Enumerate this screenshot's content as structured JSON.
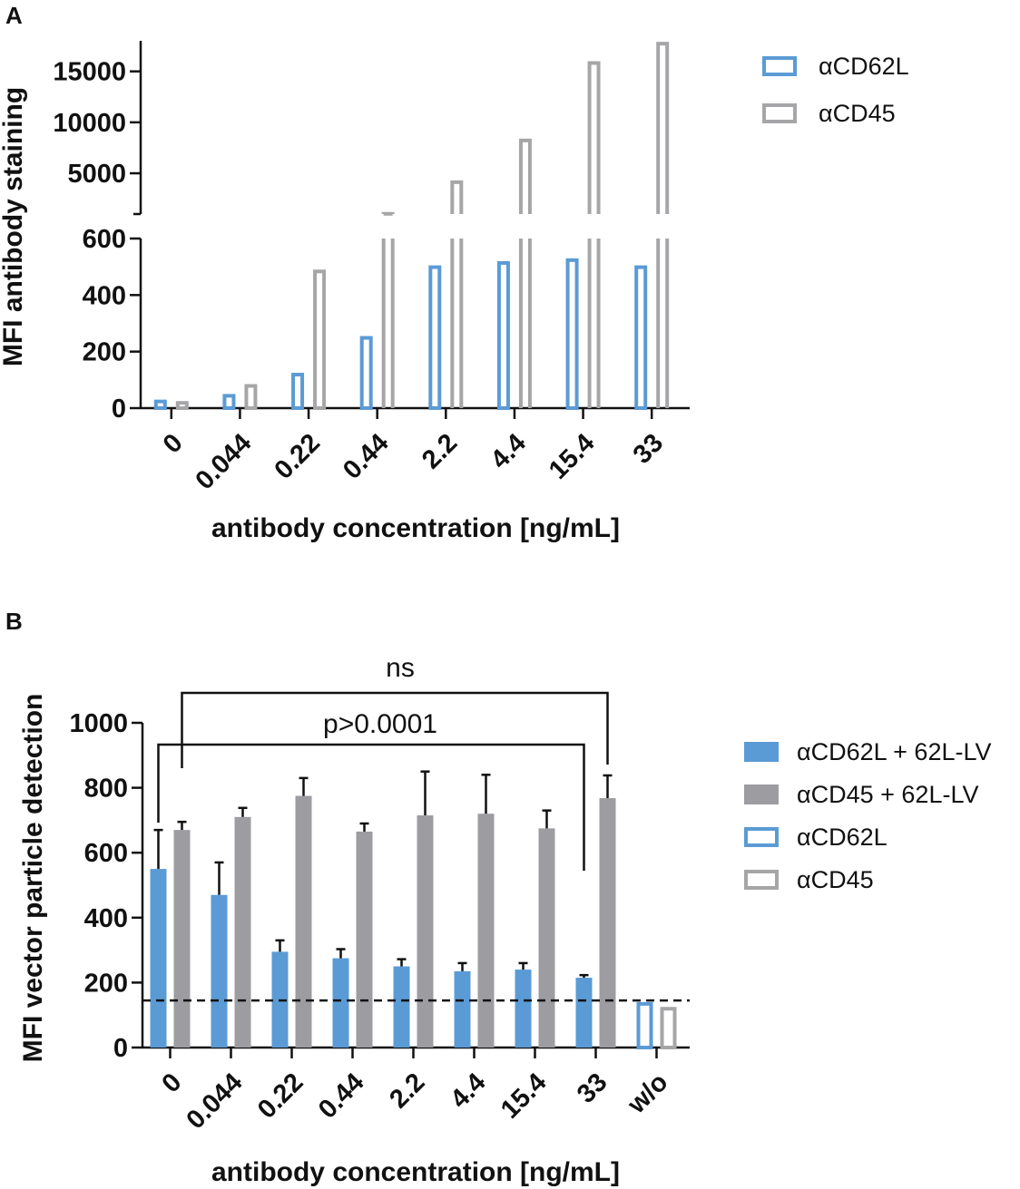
{
  "colors": {
    "cd62l": "#5b9bd5",
    "cd45": "#a6a6a8",
    "cd62l_fill": "#5b9bd5",
    "cd45_fill": "#9d9da1",
    "axis": "#111111"
  },
  "chart_data": [
    {
      "panel": "A",
      "type": "bar",
      "categories": [
        "0",
        "0.044",
        "0.22",
        "0.44",
        "2.2",
        "4.4",
        "15.4",
        "33"
      ],
      "xlabel": "antibody concentration [ng/mL]",
      "ylabel": "MFI antibody staining",
      "broken_axis": {
        "lower_range": [
          0,
          600
        ],
        "lower_ticks": [
          "0",
          "200",
          "400",
          "600"
        ],
        "upper_range": [
          1000,
          18000
        ],
        "upper_ticks": [
          "5000",
          "10000",
          "15000"
        ]
      },
      "series": [
        {
          "name": "αCD62L",
          "style": "outline",
          "color_key": "cd62l",
          "values": [
            30,
            50,
            125,
            255,
            505,
            520,
            530,
            505
          ]
        },
        {
          "name": "αCD45",
          "style": "outline",
          "color_key": "cd45",
          "values": [
            25,
            85,
            490,
            1200,
            4300,
            8400,
            16000,
            17900
          ]
        }
      ],
      "legend": [
        "αCD62L",
        "αCD45"
      ]
    },
    {
      "panel": "B",
      "type": "bar",
      "categories": [
        "0",
        "0.044",
        "0.22",
        "0.44",
        "2.2",
        "4.4",
        "15.4",
        "33",
        "w/o"
      ],
      "xlabel": "antibody concentration [ng/mL]",
      "ylabel": "MFI vector particle detection",
      "ylim": [
        0,
        1000
      ],
      "yticks": [
        "0",
        "200",
        "400",
        "600",
        "800",
        "1000"
      ],
      "series": [
        {
          "name": "αCD62L + 62L-LV",
          "style": "filled",
          "color_key": "cd62l_fill",
          "values": [
            550,
            470,
            295,
            275,
            250,
            235,
            240,
            215,
            null
          ],
          "errors": [
            120,
            100,
            35,
            28,
            22,
            25,
            20,
            8,
            null
          ]
        },
        {
          "name": "αCD45 + 62L-LV",
          "style": "filled",
          "color_key": "cd45_fill",
          "values": [
            670,
            710,
            775,
            665,
            715,
            720,
            675,
            768,
            null
          ],
          "errors": [
            25,
            28,
            55,
            25,
            135,
            120,
            55,
            70,
            null
          ]
        },
        {
          "name": "αCD62L",
          "style": "outline",
          "color_key": "cd62l",
          "values": [
            null,
            null,
            null,
            null,
            null,
            null,
            null,
            null,
            140
          ],
          "errors": [
            null,
            null,
            null,
            null,
            null,
            null,
            null,
            null,
            null
          ]
        },
        {
          "name": "αCD45",
          "style": "outline",
          "color_key": "cd45",
          "values": [
            null,
            null,
            null,
            null,
            null,
            null,
            null,
            null,
            125
          ],
          "errors": [
            null,
            null,
            null,
            null,
            null,
            null,
            null,
            null,
            null
          ]
        }
      ],
      "threshold": 145,
      "annotations": {
        "ns": "ns",
        "p": "p>0.0001"
      },
      "legend": [
        "αCD62L + 62L-LV",
        "αCD45 + 62L-LV",
        "αCD62L",
        "αCD45"
      ]
    }
  ]
}
